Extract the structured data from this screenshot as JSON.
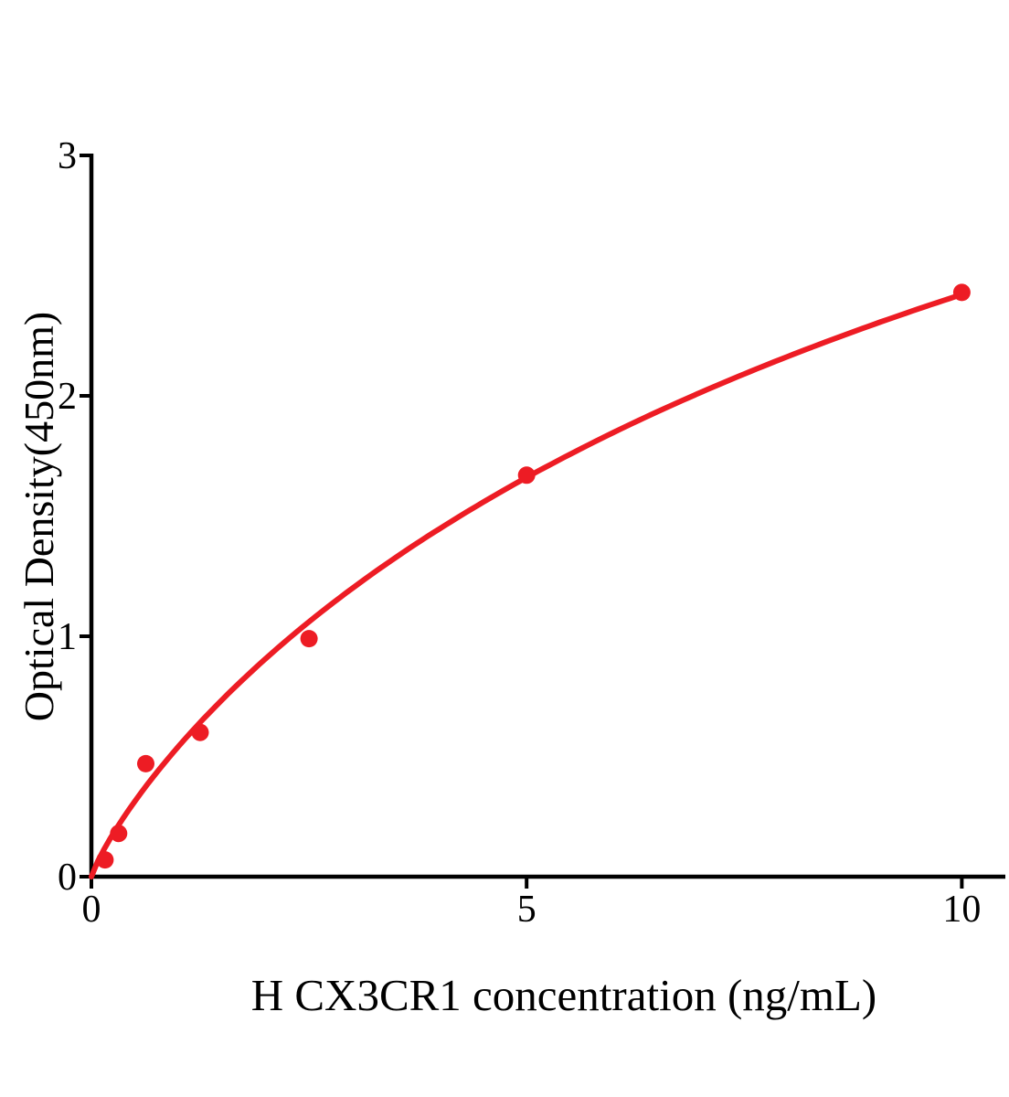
{
  "chart_data": {
    "type": "scatter",
    "subtype": "elisa-standard-curve-with-fitted-line",
    "title": "",
    "xlabel": "H CX3CR1 concentration (ng/mL)",
    "ylabel": "Optical Density(450nm)",
    "x": [
      0.156,
      0.3125,
      0.625,
      1.25,
      2.5,
      5,
      10
    ],
    "y": [
      0.07,
      0.18,
      0.47,
      0.6,
      0.99,
      1.67,
      2.43
    ],
    "x_ticks": [
      0,
      5,
      10
    ],
    "y_ticks": [
      0,
      1,
      2,
      3
    ],
    "xlim": [
      0,
      10.5
    ],
    "ylim": [
      0,
      3
    ],
    "grid": false,
    "legend_position": "none",
    "marker_color": "#ED1C24",
    "line_color": "#ED1C24",
    "axis_color": "#000000",
    "background_color": "#FFFFFF",
    "curve_fit": {
      "model": "hill",
      "top": 5.645,
      "ec50": 14.0,
      "hill_slope": 0.85,
      "x_start": 0,
      "x_end": 10
    }
  }
}
